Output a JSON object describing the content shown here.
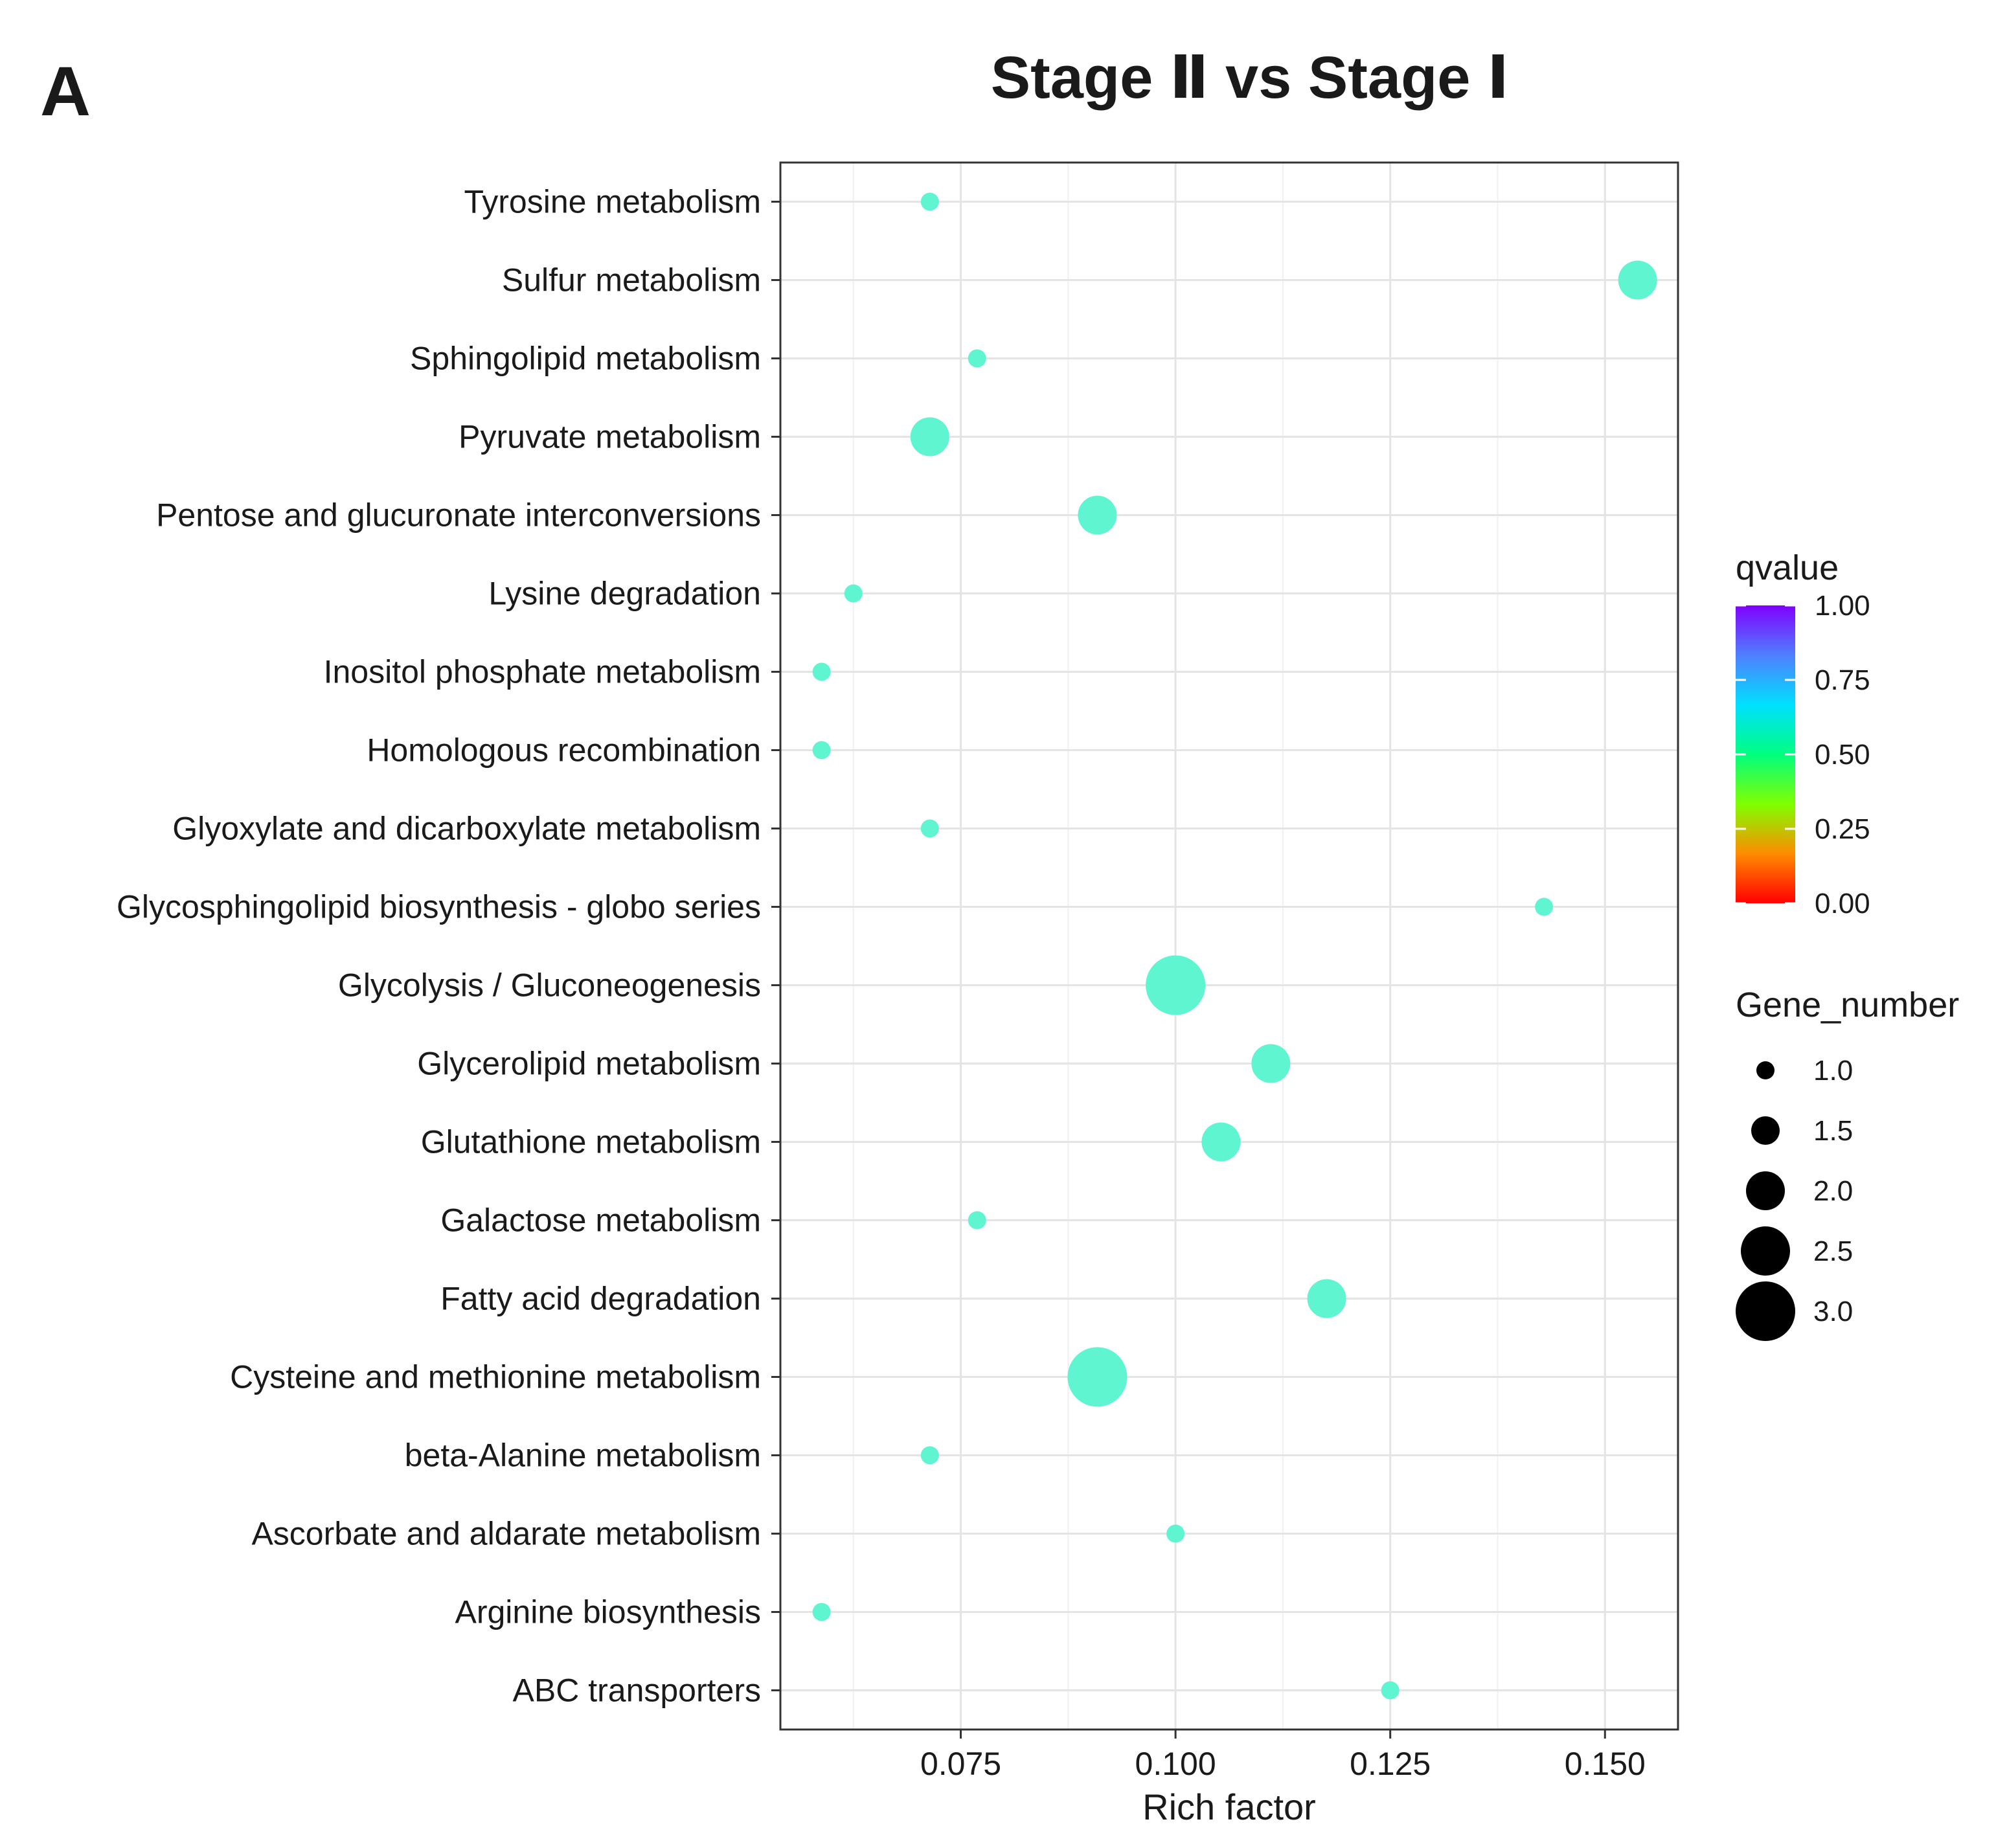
{
  "panel_label": "A",
  "chart_data": {
    "type": "scatter",
    "title": "Stage Ⅱ vs Stage Ⅰ",
    "xlabel": "Rich factor",
    "ylabel": "",
    "xlim": [
      0.054,
      0.1585
    ],
    "xticks": [
      0.075,
      0.1,
      0.125,
      0.15
    ],
    "xtick_labels": [
      "0.075",
      "0.100",
      "0.125",
      "0.150"
    ],
    "grid": true,
    "categories": [
      "Tyrosine metabolism",
      "Sulfur metabolism",
      "Sphingolipid metabolism",
      "Pyruvate metabolism",
      "Pentose and glucuronate interconversions",
      "Lysine degradation",
      "Inositol phosphate metabolism",
      "Homologous recombination",
      "Glyoxylate and dicarboxylate metabolism",
      "Glycosphingolipid biosynthesis - globo series",
      "Glycolysis / Gluconeogenesis",
      "Glycerolipid metabolism",
      "Glutathione metabolism",
      "Galactose metabolism",
      "Fatty acid degradation",
      "Cysteine and methionine metabolism",
      "beta-Alanine metabolism",
      "Ascorbate and aldarate metabolism",
      "Arginine biosynthesis",
      "ABC transporters"
    ],
    "rich_factor": [
      0.0714,
      0.1538,
      0.0769,
      0.0714,
      0.0909,
      0.0625,
      0.0588,
      0.0588,
      0.0714,
      0.1429,
      0.1,
      0.1111,
      0.1053,
      0.0769,
      0.1176,
      0.0909,
      0.0714,
      0.1,
      0.0588,
      0.125
    ],
    "gene_number": [
      1,
      2,
      1,
      2,
      2,
      1,
      1,
      1,
      1,
      1,
      3,
      2,
      2,
      1,
      2,
      3,
      1,
      1,
      1,
      1
    ],
    "qvalue": [
      0.56,
      0.56,
      0.56,
      0.56,
      0.56,
      0.56,
      0.56,
      0.56,
      0.56,
      0.56,
      0.56,
      0.56,
      0.56,
      0.56,
      0.56,
      0.56,
      0.56,
      0.56,
      0.56,
      0.56
    ],
    "color_legend": {
      "title": "qvalue",
      "ticks": [
        1.0,
        0.75,
        0.5,
        0.25,
        0.0
      ],
      "tick_labels": [
        "1.00",
        "0.75",
        "0.50",
        "0.25",
        "0.00"
      ],
      "colors": [
        "#ff0000",
        "#ff8c00",
        "#7fff00",
        "#00ff80",
        "#00e0ff",
        "#4f7fff",
        "#8000ff"
      ],
      "point_color": "#5ef5d0"
    },
    "size_legend": {
      "title": "Gene_number",
      "values": [
        1.0,
        1.5,
        2.0,
        2.5,
        3.0
      ],
      "labels": [
        "1.0",
        "1.5",
        "2.0",
        "2.5",
        "3.0"
      ]
    }
  }
}
